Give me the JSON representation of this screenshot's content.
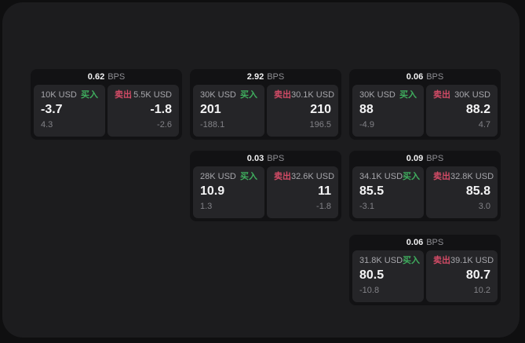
{
  "labels": {
    "bps_unit": "BPS",
    "buy": "买入",
    "sell": "卖出"
  },
  "colors": {
    "background": "#0f0f10",
    "panel": "#1c1c1e",
    "card": "#121214",
    "tile": "#252528",
    "buy": "#3fae5e",
    "sell": "#d24b66"
  },
  "cards": [
    {
      "bps": "0.62",
      "buy": {
        "amount": "10K USD",
        "price": "-3.7",
        "delta": "4.3"
      },
      "sell": {
        "amount": "5.5K USD",
        "price": "-1.8",
        "delta": "-2.6"
      }
    },
    {
      "bps": "2.92",
      "buy": {
        "amount": "30K USD",
        "price": "201",
        "delta": "-188.1"
      },
      "sell": {
        "amount": "30.1K USD",
        "price": "210",
        "delta": "196.5"
      }
    },
    {
      "bps": "0.06",
      "buy": {
        "amount": "30K USD",
        "price": "88",
        "delta": "-4.9"
      },
      "sell": {
        "amount": "30K USD",
        "price": "88.2",
        "delta": "4.7"
      }
    },
    {
      "bps": "0.03",
      "buy": {
        "amount": "28K USD",
        "price": "10.9",
        "delta": "1.3"
      },
      "sell": {
        "amount": "32.6K USD",
        "price": "11",
        "delta": "-1.8"
      }
    },
    {
      "bps": "0.09",
      "buy": {
        "amount": "34.1K USD",
        "price": "85.5",
        "delta": "-3.1"
      },
      "sell": {
        "amount": "32.8K USD",
        "price": "85.8",
        "delta": "3.0"
      }
    },
    {
      "bps": "0.06",
      "buy": {
        "amount": "31.8K USD",
        "price": "80.5",
        "delta": "-10.8"
      },
      "sell": {
        "amount": "39.1K USD",
        "price": "80.7",
        "delta": "10.2"
      }
    }
  ]
}
